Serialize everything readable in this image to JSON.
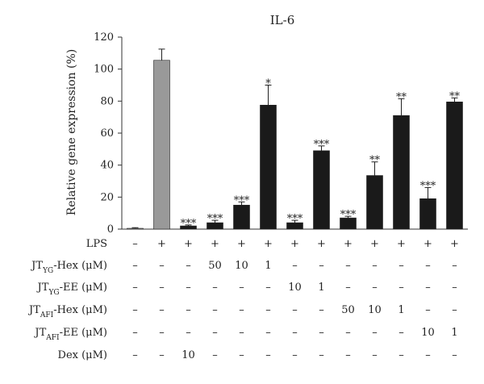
{
  "chart_data": {
    "type": "bar",
    "title": "IL-6",
    "ylabel": "Relative gene expression (%)",
    "ylim": [
      0,
      120
    ],
    "yticks": [
      0,
      20,
      40,
      60,
      80,
      100,
      120
    ],
    "grid": false,
    "values": [
      0.5,
      105.5,
      2,
      4,
      15,
      77.5,
      4,
      49,
      7,
      33.5,
      71,
      19,
      79.5
    ],
    "errors": [
      0.4,
      7,
      0.6,
      1.5,
      2,
      12.5,
      1.5,
      3,
      1,
      8.5,
      10.5,
      7,
      2.5
    ],
    "colors": [
      "#999999",
      "#999999",
      "#1a1a1a",
      "#1a1a1a",
      "#1a1a1a",
      "#1a1a1a",
      "#1a1a1a",
      "#1a1a1a",
      "#1a1a1a",
      "#1a1a1a",
      "#1a1a1a",
      "#1a1a1a",
      "#1a1a1a"
    ],
    "significance": [
      "",
      "",
      "***",
      "***",
      "***",
      "*",
      "***",
      "***",
      "***",
      "**",
      "**",
      "***",
      "**"
    ],
    "conditions": [
      {
        "label": "LPS",
        "sub": "",
        "suffix": "",
        "values": [
          "–",
          "+",
          "+",
          "+",
          "+",
          "+",
          "+",
          "+",
          "+",
          "+",
          "+",
          "+",
          "+"
        ]
      },
      {
        "label": "JT",
        "sub": "YG",
        "suffix": "-Hex (μM)",
        "values": [
          "–",
          "–",
          "–",
          "50",
          "10",
          "1",
          "–",
          "–",
          "–",
          "–",
          "–",
          "–",
          "–"
        ]
      },
      {
        "label": "JT",
        "sub": "YG",
        "suffix": "-EE (μM)",
        "values": [
          "–",
          "–",
          "–",
          "–",
          "–",
          "–",
          "10",
          "1",
          "–",
          "–",
          "–",
          "–",
          "–"
        ]
      },
      {
        "label": "JT",
        "sub": "AFI",
        "suffix": "-Hex (μM)",
        "values": [
          "–",
          "–",
          "–",
          "–",
          "–",
          "–",
          "–",
          "–",
          "50",
          "10",
          "1",
          "–",
          "–"
        ]
      },
      {
        "label": "JT",
        "sub": "AFI",
        "suffix": "-EE (μM)",
        "values": [
          "–",
          "–",
          "–",
          "–",
          "–",
          "–",
          "–",
          "–",
          "–",
          "–",
          "–",
          "10",
          "1"
        ]
      },
      {
        "label": "Dex (μM)",
        "sub": "",
        "suffix": "",
        "values": [
          "–",
          "–",
          "10",
          "–",
          "–",
          "–",
          "–",
          "–",
          "–",
          "–",
          "–",
          "–",
          "–"
        ]
      }
    ]
  }
}
